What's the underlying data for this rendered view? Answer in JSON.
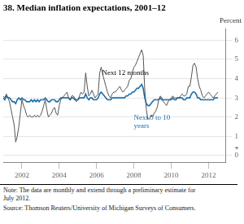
{
  "chart_data": {
    "type": "line",
    "title": "38. Median inflation expectations, 2001–12",
    "y_label": "Percent",
    "note": "Note: The data are monthly and extend through a preliminary estimate for\nJuly 2012.",
    "source": "Source: Thomson Reuters/University of Michigan Surveys of Consumers.",
    "annotations": [
      {
        "text": "Next 12 months",
        "x": 2006.3,
        "y": 4.05
      },
      {
        "text": "Next 5 to 10\nyears",
        "x": 2008.0,
        "y": 2.15,
        "color": "#1a6faf"
      },
      {
        "text": "+",
        "y": 0
      }
    ],
    "x": [
      2001.0,
      2001.083,
      2001.167,
      2001.25,
      2001.333,
      2001.417,
      2001.5,
      2001.583,
      2001.667,
      2001.75,
      2001.833,
      2001.917,
      2002.0,
      2002.083,
      2002.167,
      2002.25,
      2002.333,
      2002.417,
      2002.5,
      2002.583,
      2002.667,
      2002.75,
      2002.833,
      2002.917,
      2003.0,
      2003.083,
      2003.167,
      2003.25,
      2003.333,
      2003.417,
      2003.5,
      2003.583,
      2003.667,
      2003.75,
      2003.833,
      2003.917,
      2004.0,
      2004.083,
      2004.167,
      2004.25,
      2004.333,
      2004.417,
      2004.5,
      2004.583,
      2004.667,
      2004.75,
      2004.833,
      2004.917,
      2005.0,
      2005.083,
      2005.167,
      2005.25,
      2005.333,
      2005.417,
      2005.5,
      2005.583,
      2005.667,
      2005.75,
      2005.833,
      2005.917,
      2006.0,
      2006.083,
      2006.167,
      2006.25,
      2006.333,
      2006.417,
      2006.5,
      2006.583,
      2006.667,
      2006.75,
      2006.833,
      2006.917,
      2007.0,
      2007.083,
      2007.167,
      2007.25,
      2007.333,
      2007.417,
      2007.5,
      2007.583,
      2007.667,
      2007.75,
      2007.833,
      2007.917,
      2008.0,
      2008.083,
      2008.167,
      2008.25,
      2008.333,
      2008.417,
      2008.5,
      2008.583,
      2008.667,
      2008.75,
      2008.833,
      2008.917,
      2009.0,
      2009.083,
      2009.167,
      2009.25,
      2009.333,
      2009.417,
      2009.5,
      2009.583,
      2009.667,
      2009.75,
      2009.833,
      2009.917,
      2010.0,
      2010.083,
      2010.167,
      2010.25,
      2010.333,
      2010.417,
      2010.5,
      2010.583,
      2010.667,
      2010.75,
      2010.833,
      2010.917,
      2011.0,
      2011.083,
      2011.167,
      2011.25,
      2011.333,
      2011.417,
      2011.5,
      2011.583,
      2011.667,
      2011.75,
      2011.833,
      2011.917,
      2012.0,
      2012.083,
      2012.167,
      2012.25,
      2012.333,
      2012.5
    ],
    "series": [
      {
        "color": "#555555",
        "values": [
          3.1,
          3.0,
          3.2,
          3.0,
          2.8,
          2.4,
          2.0,
          1.6,
          0.7,
          1.0,
          1.5,
          2.2,
          2.9,
          2.6,
          2.4,
          2.1,
          2.0,
          2.1,
          2.0,
          2.0,
          2.1,
          2.0,
          2.1,
          2.0,
          2.1,
          2.3,
          2.6,
          2.9,
          2.4,
          2.0,
          2.1,
          2.2,
          2.4,
          2.5,
          2.2,
          2.1,
          2.6,
          2.9,
          3.0,
          3.1,
          3.2,
          3.3,
          3.0,
          2.9,
          3.1,
          3.1,
          3.0,
          2.8,
          2.9,
          3.1,
          3.3,
          3.2,
          3.3,
          4.3,
          3.6,
          3.1,
          3.2,
          3.4,
          3.2,
          3.0,
          3.1,
          3.2,
          4.3,
          4.6,
          4.2,
          3.9,
          3.6,
          3.3,
          3.1,
          3.0,
          3.2,
          3.3,
          3.3,
          3.4,
          3.5,
          3.6,
          3.4,
          3.3,
          3.4,
          3.5,
          3.6,
          3.9,
          4.0,
          4.3,
          4.6,
          4.7,
          4.9,
          5.1,
          5.3,
          5.5,
          5.2,
          3.4,
          2.4,
          1.9,
          1.9,
          2.1,
          2.0,
          2.2,
          2.3,
          2.5,
          2.9,
          3.1,
          3.0,
          2.8,
          2.7,
          2.6,
          2.8,
          2.9,
          3.0,
          3.1,
          3.0,
          3.0,
          3.0,
          3.0,
          3.1,
          3.2,
          3.1,
          3.1,
          3.2,
          3.6,
          3.6,
          4.1,
          4.7,
          4.8,
          4.6,
          4.0,
          3.6,
          3.4,
          3.1,
          3.0,
          3.1,
          3.2,
          3.3,
          3.2,
          3.1,
          3.0,
          3.1,
          3.3
        ]
      },
      {
        "color": "#1a6faf",
        "values": [
          3.0,
          2.9,
          3.1,
          3.0,
          3.0,
          2.9,
          2.8,
          2.8,
          2.7,
          2.9,
          3.0,
          2.9,
          3.0,
          2.9,
          2.9,
          2.8,
          2.8,
          2.8,
          2.9,
          2.8,
          2.9,
          2.8,
          2.9,
          2.8,
          2.9,
          2.9,
          2.9,
          3.0,
          2.9,
          2.8,
          2.8,
          2.9,
          2.9,
          2.9,
          2.8,
          2.8,
          2.9,
          3.0,
          3.0,
          3.0,
          3.0,
          3.0,
          3.0,
          2.9,
          3.0,
          3.0,
          2.9,
          2.9,
          2.9,
          3.0,
          3.0,
          3.0,
          3.0,
          3.2,
          3.0,
          2.9,
          3.0,
          3.0,
          2.9,
          2.9,
          2.9,
          3.0,
          3.2,
          3.3,
          3.2,
          3.1,
          3.0,
          2.9,
          2.9,
          2.9,
          3.0,
          3.0,
          3.0,
          3.0,
          3.0,
          3.0,
          3.0,
          3.0,
          3.0,
          3.1,
          3.1,
          3.2,
          3.2,
          3.3,
          3.3,
          3.4,
          3.5,
          3.5,
          3.6,
          3.7,
          3.5,
          3.0,
          2.7,
          2.6,
          2.6,
          2.7,
          2.8,
          2.9,
          2.9,
          2.9,
          2.9,
          3.0,
          2.9,
          2.9,
          2.9,
          2.9,
          2.9,
          2.9,
          2.9,
          3.0,
          2.9,
          2.9,
          3.0,
          3.0,
          3.0,
          3.0,
          2.9,
          2.9,
          3.0,
          3.0,
          3.0,
          3.2,
          3.3,
          3.3,
          3.2,
          3.0,
          3.0,
          2.9,
          2.9,
          2.9,
          2.9,
          2.9,
          2.9,
          2.9,
          2.9,
          2.9,
          3.0,
          3.0
        ]
      }
    ],
    "xlim": [
      2001.0,
      2012.92
    ],
    "xticks": [
      2002,
      2004,
      2006,
      2008,
      2010,
      2012
    ],
    "ylim": [
      -0.35,
      6.6
    ],
    "yticks": [
      0,
      1,
      2,
      3,
      4,
      5,
      6
    ],
    "grid": true
  }
}
